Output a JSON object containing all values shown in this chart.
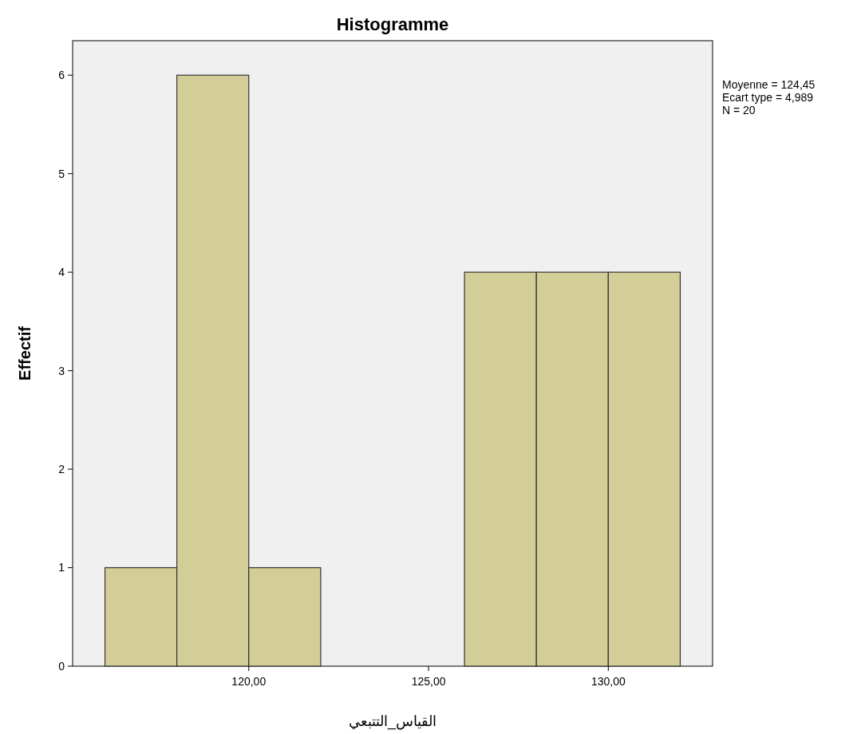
{
  "chart_data": {
    "type": "histogram",
    "title": "Histogramme",
    "xlabel": "القياس_التتبعي",
    "ylabel": "Effectif",
    "bins": [
      116,
      118,
      120,
      122,
      124,
      126,
      128,
      130,
      132
    ],
    "values": [
      1,
      6,
      1,
      0,
      0,
      4,
      4,
      4
    ],
    "color": "#d3ce97",
    "xlim": [
      115.1,
      132.9
    ],
    "xticks": [
      {
        "value": 120,
        "label": "120,00"
      },
      {
        "value": 125,
        "label": "125,00"
      },
      {
        "value": 130,
        "label": "130,00"
      }
    ],
    "ylim": [
      0,
      6.35
    ],
    "yticks": [
      0,
      1,
      2,
      3,
      4,
      5,
      6
    ],
    "grid": false,
    "annotations": [
      "Moyenne = 124,45",
      "Ecart type = 4,989",
      "N = 20"
    ]
  }
}
